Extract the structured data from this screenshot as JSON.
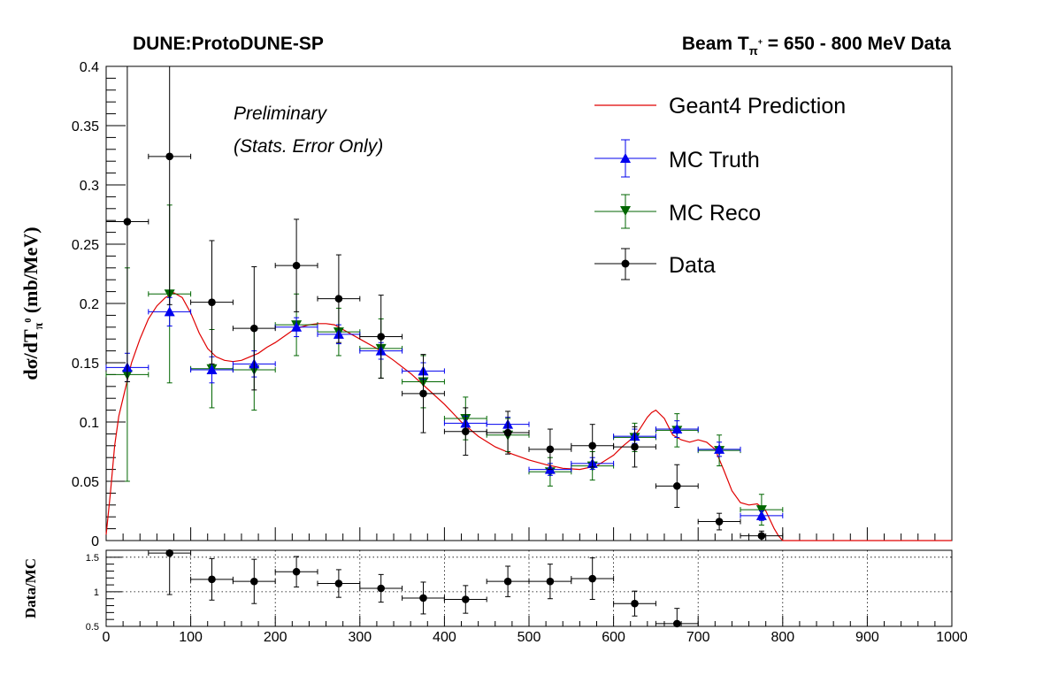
{
  "header": {
    "left": "DUNE:ProtoDUNE-SP",
    "right_prefix": "Beam T",
    "right_sub": "π",
    "right_sup": "+",
    "right_suffix": " = 650 - 800 MeV Data"
  },
  "annotations": {
    "line1": "Preliminary",
    "line2": "(Stats. Error Only)"
  },
  "chart_data": [
    {
      "type": "scatter",
      "ylabel_main": "dσ/dT",
      "ylabel_sub": "π",
      "ylabel_sup": "0",
      "ylabel_unit": " (mb/MeV)",
      "xlim": [
        0,
        1000
      ],
      "ylim": [
        0,
        0.4
      ],
      "yticks": [
        0,
        0.05,
        0.1,
        0.15,
        0.2,
        0.25,
        0.3,
        0.35,
        0.4
      ],
      "ytick_labels": [
        "0",
        "0.05",
        "0.1",
        "0.15",
        "0.2",
        "0.25",
        "0.3",
        "0.35",
        "0.4"
      ],
      "legend_position": "top-right",
      "legend": [
        {
          "label": "Geant4 Prediction",
          "color": "#e00000",
          "marker": "line"
        },
        {
          "label": "MC Truth",
          "color": "#0000ee",
          "marker": "triangle-up"
        },
        {
          "label": "MC Reco",
          "color": "#006600",
          "marker": "triangle-down"
        },
        {
          "label": "Data",
          "color": "#000000",
          "marker": "circle"
        }
      ],
      "prediction": {
        "name": "Geant4 Prediction",
        "color": "#e00000",
        "x": [
          0,
          5,
          10,
          15,
          20,
          25,
          30,
          40,
          50,
          60,
          70,
          80,
          90,
          100,
          110,
          120,
          130,
          140,
          150,
          160,
          170,
          180,
          190,
          200,
          210,
          220,
          230,
          240,
          250,
          260,
          270,
          280,
          290,
          300,
          320,
          340,
          360,
          380,
          400,
          420,
          440,
          460,
          480,
          500,
          520,
          540,
          560,
          580,
          600,
          610,
          620,
          630,
          640,
          645,
          650,
          660,
          670,
          680,
          690,
          700,
          710,
          720,
          730,
          740,
          750,
          760,
          770,
          780,
          790,
          795,
          800,
          1000
        ],
        "y": [
          0.005,
          0.04,
          0.08,
          0.105,
          0.12,
          0.135,
          0.15,
          0.17,
          0.187,
          0.198,
          0.205,
          0.209,
          0.205,
          0.192,
          0.175,
          0.162,
          0.155,
          0.152,
          0.151,
          0.152,
          0.155,
          0.158,
          0.163,
          0.167,
          0.172,
          0.177,
          0.18,
          0.182,
          0.183,
          0.183,
          0.182,
          0.178,
          0.174,
          0.17,
          0.162,
          0.152,
          0.141,
          0.128,
          0.115,
          0.1,
          0.088,
          0.079,
          0.073,
          0.068,
          0.064,
          0.061,
          0.06,
          0.063,
          0.072,
          0.079,
          0.085,
          0.093,
          0.104,
          0.108,
          0.11,
          0.103,
          0.089,
          0.085,
          0.083,
          0.085,
          0.083,
          0.077,
          0.06,
          0.042,
          0.032,
          0.03,
          0.031,
          0.025,
          0.01,
          0.004,
          0.0,
          0.0
        ]
      },
      "series": [
        {
          "name": "MC Truth",
          "color": "#0000ee",
          "marker": "triangle-up",
          "x": [
            25,
            75,
            125,
            175,
            225,
            275,
            325,
            375,
            425,
            475,
            525,
            575,
            625,
            675,
            725,
            775
          ],
          "y": [
            0.146,
            0.193,
            0.144,
            0.149,
            0.18,
            0.174,
            0.16,
            0.143,
            0.099,
            0.098,
            0.06,
            0.065,
            0.088,
            0.094,
            0.077,
            0.021
          ],
          "yerr": [
            0.012,
            0.012,
            0.011,
            0.011,
            0.008,
            0.008,
            0.007,
            0.007,
            0.006,
            0.006,
            0.005,
            0.005,
            0.006,
            0.007,
            0.006,
            0.004
          ]
        },
        {
          "name": "MC Reco",
          "color": "#006600",
          "marker": "triangle-down",
          "x": [
            25,
            75,
            125,
            175,
            225,
            275,
            325,
            375,
            425,
            475,
            525,
            575,
            625,
            675,
            725,
            775
          ],
          "y": [
            0.14,
            0.208,
            0.145,
            0.144,
            0.182,
            0.176,
            0.162,
            0.134,
            0.103,
            0.089,
            0.058,
            0.063,
            0.087,
            0.093,
            0.076,
            0.026
          ],
          "yerr": [
            0.09,
            0.075,
            0.033,
            0.034,
            0.026,
            0.02,
            0.025,
            0.022,
            0.018,
            0.014,
            0.012,
            0.012,
            0.012,
            0.014,
            0.013,
            0.013
          ]
        },
        {
          "name": "Data",
          "color": "#000000",
          "marker": "circle",
          "x": [
            25,
            75,
            125,
            175,
            225,
            275,
            325,
            375,
            425,
            475,
            525,
            575,
            625,
            675,
            725,
            775
          ],
          "y": [
            0.269,
            0.324,
            0.201,
            0.179,
            0.232,
            0.204,
            0.172,
            0.124,
            0.092,
            0.091,
            0.077,
            0.08,
            0.079,
            0.046,
            0.016,
            0.004
          ],
          "yerr": [
            0.135,
            0.125,
            0.052,
            0.052,
            0.039,
            0.037,
            0.035,
            0.033,
            0.02,
            0.018,
            0.017,
            0.018,
            0.017,
            0.018,
            0.007,
            0.004
          ]
        }
      ],
      "xerr": 25
    },
    {
      "type": "scatter",
      "ylabel": "Data/MC",
      "xlim": [
        0,
        1000
      ],
      "ylim": [
        0.5,
        1.6
      ],
      "yticks": [
        0.5,
        1,
        1.5
      ],
      "ytick_labels": [
        "0.5",
        "1",
        "1.5"
      ],
      "xticks": [
        0,
        100,
        200,
        300,
        400,
        500,
        600,
        700,
        800,
        900,
        1000
      ],
      "xtick_labels": [
        "0",
        "100",
        "200",
        "300",
        "400",
        "500",
        "600",
        "700",
        "800",
        "900",
        "1000"
      ],
      "grid": true,
      "series": [
        {
          "name": "Data/MC",
          "color": "#000000",
          "marker": "circle",
          "x": [
            75,
            125,
            175,
            225,
            275,
            325,
            375,
            425,
            475,
            525,
            575,
            625,
            675
          ],
          "y": [
            1.56,
            1.18,
            1.15,
            1.29,
            1.12,
            1.05,
            0.91,
            0.89,
            1.15,
            1.15,
            1.19,
            0.83,
            0.54
          ],
          "yerr": [
            0.6,
            0.3,
            0.32,
            0.22,
            0.2,
            0.2,
            0.23,
            0.2,
            0.22,
            0.25,
            0.3,
            0.18,
            0.22
          ]
        }
      ],
      "xerr": 25
    }
  ]
}
